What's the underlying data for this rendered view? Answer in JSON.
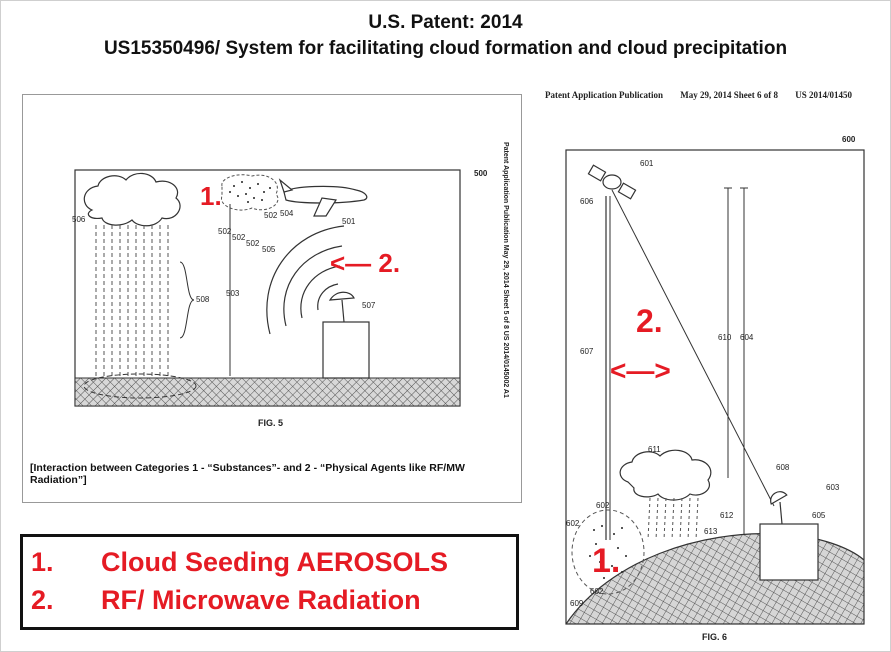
{
  "title": {
    "line1": "U.S. Patent: 2014",
    "line2": "US15350496/ System for facilitating cloud formation and cloud precipitation"
  },
  "fig5": {
    "figure_label": "FIG. 5",
    "ref_number": "500",
    "side_text": "Patent Application Publication   May 29, 2014  Sheet 5 of 8    US 2014/0145002 A1",
    "marker_1": "1.",
    "marker_2": "<— 2.",
    "labels": {
      "l506": "506",
      "l502a": "502",
      "l502b": "502",
      "l502c": "502",
      "l502d": "502",
      "l504": "504",
      "l505": "505",
      "l501": "501",
      "l503": "503",
      "l508": "508",
      "l507": "507"
    }
  },
  "caption": "[Interaction between Categories 1 - “Substances”- and 2 - “Physical Agents like RF/MW Radiation”]",
  "legend": {
    "item1_num": "1.",
    "item1_text": "Cloud Seeding AEROSOLS",
    "item2_num": "2.",
    "item2_text": "RF/ Microwave Radiation"
  },
  "fig6": {
    "header": {
      "publication": "Patent Application Publication",
      "date_sheet": "May 29, 2014  Sheet 6 of 8",
      "number": "US 2014/01450"
    },
    "figure_label": "FIG. 6",
    "ref_number": "600",
    "marker_1": "1.",
    "marker_2": "2.",
    "arrow": "<—>",
    "labels": {
      "l601": "601",
      "l606": "606",
      "l607": "607",
      "l610": "610",
      "l604": "604",
      "l611": "611",
      "l608": "608",
      "l603": "603",
      "l602a": "602",
      "l602b": "602",
      "l602c": "602",
      "l612": "612",
      "l613": "613",
      "l605": "605",
      "l609": "609"
    }
  },
  "colors": {
    "accent_red": "#e51b24",
    "ink": "#222222"
  }
}
